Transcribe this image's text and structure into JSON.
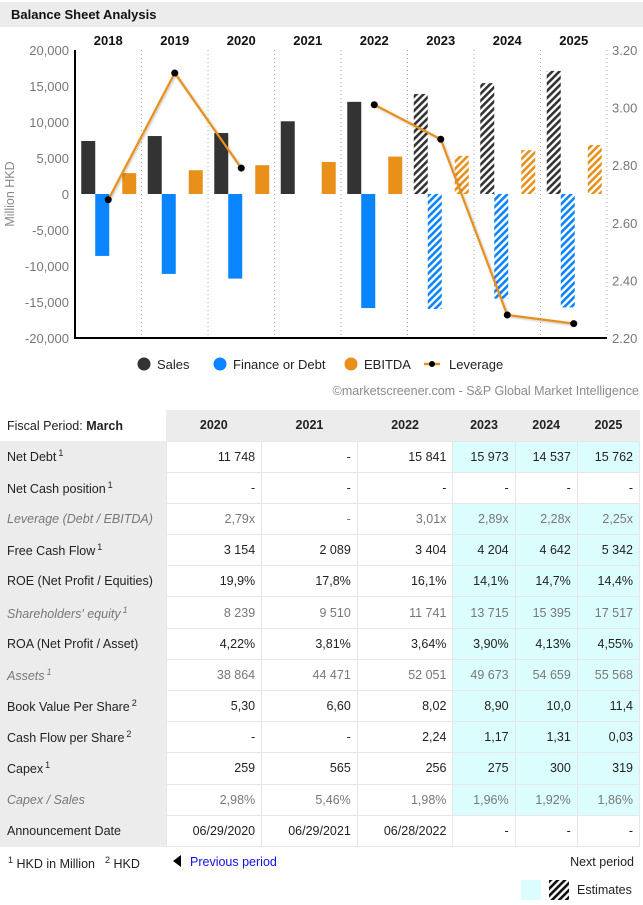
{
  "header": {
    "title": "Balance Sheet Analysis"
  },
  "chart_data": {
    "type": "bar",
    "title": "Balance Sheet Analysis",
    "categories": [
      "2018",
      "2019",
      "2020",
      "2021",
      "2022",
      "2023",
      "2024",
      "2025"
    ],
    "estimate_from_index": 5,
    "ylabel": "Million HKD",
    "ylim": [
      -20000,
      20000
    ],
    "yticks": [
      "20,000",
      "15,000",
      "10,000",
      "5,000",
      "0",
      "-5,000",
      "-10,000",
      "-15,000",
      "-20,000"
    ],
    "y2lim": [
      2.2,
      3.2
    ],
    "y2ticks": [
      "3.20",
      "3.00",
      "2.80",
      "2.60",
      "2.40",
      "2.20"
    ],
    "legend_position": "bottom",
    "series": [
      {
        "name": "Sales",
        "kind": "bar",
        "color": "#333333",
        "values": [
          7360,
          8050,
          8470,
          10100,
          12800,
          13900,
          15400,
          17100
        ]
      },
      {
        "name": "Finance or Debt",
        "kind": "bar",
        "color": "#0a84ff",
        "values": [
          -8600,
          -11100,
          -11748,
          0,
          -15841,
          -15973,
          -14537,
          -15762
        ]
      },
      {
        "name": "EBITDA",
        "kind": "bar",
        "color": "#e8901a",
        "values": [
          2900,
          3300,
          4000,
          4450,
          5200,
          5300,
          6100,
          6800
        ]
      },
      {
        "name": "Leverage",
        "kind": "line",
        "axis": "right",
        "color": "#e8901a",
        "values": [
          2.68,
          3.12,
          2.79,
          null,
          3.01,
          2.89,
          2.28,
          2.25
        ]
      }
    ],
    "credit": "©marketscreener.com - S&P Global Market Intelligence"
  },
  "table": {
    "fiscal_label": "Fiscal Period: ",
    "fiscal_value": "March",
    "columns": [
      "2020",
      "2021",
      "2022",
      "2023",
      "2024",
      "2025"
    ],
    "estimate_columns": [
      false,
      false,
      false,
      true,
      true,
      true
    ],
    "rows": [
      {
        "label": "Net Debt",
        "sup": "1",
        "muted": false,
        "estimate_shade": true,
        "values": [
          "11 748",
          "-",
          "15 841",
          "15 973",
          "14 537",
          "15 762"
        ]
      },
      {
        "label": "Net Cash position",
        "sup": "1",
        "muted": false,
        "estimate_shade": false,
        "values": [
          "-",
          "-",
          "-",
          "-",
          "-",
          "-"
        ]
      },
      {
        "label": "Leverage (Debt / EBITDA)",
        "sup": "",
        "muted": true,
        "estimate_shade": true,
        "values": [
          "2,79x",
          "-",
          "3,01x",
          "2,89x",
          "2,28x",
          "2,25x"
        ]
      },
      {
        "label": "Free Cash Flow",
        "sup": "1",
        "muted": false,
        "estimate_shade": true,
        "values": [
          "3 154",
          "2 089",
          "3 404",
          "4 204",
          "4 642",
          "5 342"
        ]
      },
      {
        "label": "ROE (Net Profit / Equities)",
        "sup": "",
        "muted": false,
        "estimate_shade": true,
        "values": [
          "19,9%",
          "17,8%",
          "16,1%",
          "14,1%",
          "14,7%",
          "14,4%"
        ]
      },
      {
        "label": "Shareholders' equity",
        "sup": "1",
        "muted": true,
        "estimate_shade": true,
        "values": [
          "8 239",
          "9 510",
          "11 741",
          "13 715",
          "15 395",
          "17 517"
        ]
      },
      {
        "label": "ROA (Net Profit / Asset)",
        "sup": "",
        "muted": false,
        "estimate_shade": true,
        "values": [
          "4,22%",
          "3,81%",
          "3,64%",
          "3,90%",
          "4,13%",
          "4,55%"
        ]
      },
      {
        "label": "Assets",
        "sup": "1",
        "muted": true,
        "estimate_shade": true,
        "values": [
          "38 864",
          "44 471",
          "52 051",
          "49 673",
          "54 659",
          "55 568"
        ]
      },
      {
        "label": "Book Value Per Share",
        "sup": "2",
        "muted": false,
        "estimate_shade": true,
        "values": [
          "5,30",
          "6,60",
          "8,02",
          "8,90",
          "10,0",
          "11,4"
        ]
      },
      {
        "label": "Cash Flow per Share",
        "sup": "2",
        "muted": false,
        "estimate_shade": true,
        "values": [
          "-",
          "-",
          "2,24",
          "1,17",
          "1,31",
          "0,03"
        ]
      },
      {
        "label": "Capex",
        "sup": "1",
        "muted": false,
        "estimate_shade": true,
        "values": [
          "259",
          "565",
          "256",
          "275",
          "300",
          "319"
        ]
      },
      {
        "label": "Capex / Sales",
        "sup": "",
        "muted": true,
        "estimate_shade": true,
        "values": [
          "2,98%",
          "5,46%",
          "1,98%",
          "1,96%",
          "1,92%",
          "1,86%"
        ]
      },
      {
        "label": "Announcement Date",
        "sup": "",
        "muted": false,
        "estimate_shade": false,
        "values": [
          "06/29/2020",
          "06/29/2021",
          "06/28/2022",
          "-",
          "-",
          "-"
        ]
      }
    ]
  },
  "footer": {
    "note1_sup": "1",
    "note1": "HKD in Million",
    "note2_sup": "2",
    "note2": "HKD",
    "previous_label": "Previous period",
    "next_label": "Next period",
    "estimates_label": "Estimates"
  }
}
